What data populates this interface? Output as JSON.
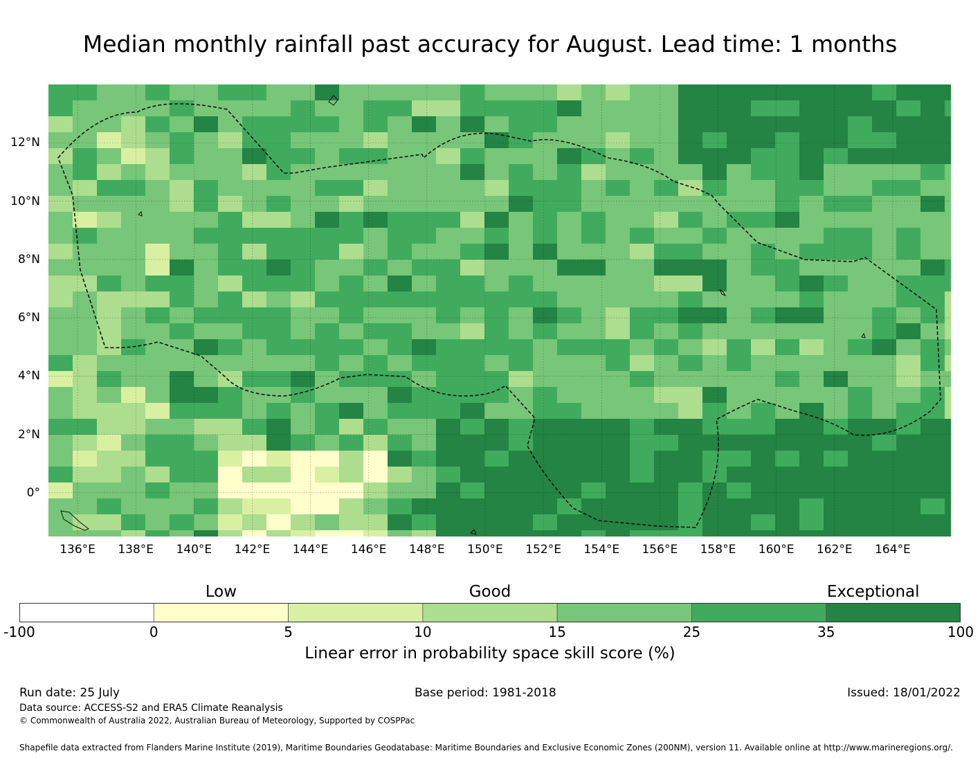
{
  "title": "Median monthly rainfall past accuracy for August. Lead time: 1 months",
  "map": {
    "lon_range": [
      135,
      166
    ],
    "lat_range": [
      -1.5,
      14
    ],
    "cell_size_deg": 0.83,
    "x_ticks": [
      "136°E",
      "138°E",
      "140°E",
      "142°E",
      "144°E",
      "146°E",
      "148°E",
      "150°E",
      "152°E",
      "154°E",
      "156°E",
      "158°E",
      "160°E",
      "162°E",
      "164°E"
    ],
    "y_ticks": [
      "12°N",
      "10°N",
      "8°N",
      "6°N",
      "4°N",
      "2°N",
      "0°"
    ],
    "boundary_style": "dashed",
    "grid": true
  },
  "legend": {
    "categories": [
      "Low",
      "Good",
      "Exceptional"
    ],
    "bins": [
      {
        "from": "-100",
        "to": "0",
        "color": "#ffffff"
      },
      {
        "from": "0",
        "to": "5",
        "color": "#ffffcc"
      },
      {
        "from": "5",
        "to": "10",
        "color": "#d9f0a3"
      },
      {
        "from": "10",
        "to": "15",
        "color": "#addd8e"
      },
      {
        "from": "15",
        "to": "25",
        "color": "#78c679"
      },
      {
        "from": "25",
        "to": "35",
        "color": "#41ab5d"
      },
      {
        "from": "35",
        "to": "100",
        "color": "#238443"
      }
    ],
    "tick_labels": [
      "-100",
      "0",
      "5",
      "10",
      "15",
      "25",
      "35",
      "100"
    ],
    "label": "Linear error in probability space skill score (%)"
  },
  "footer": {
    "run_date": "Run date: 25 July",
    "base_period": "Base period: 1981-2018",
    "issued": "Issued: 18/01/2022",
    "data_source": "Data source: ACCESS-S2 and ERA5 Climate Reanalysis",
    "copyright": "© Commonwealth of Australia 2022, Australian Bureau of Meteorology, Supported by COSPPac",
    "shapefile": "Shapefile data extracted from Flanders Marine Institute (2019), Maritime Boundaries Geodatabase: Maritime Boundaries and Exclusive Economic Zones (200NM), version 11. Available online at http://www.marineregions.org/."
  }
}
